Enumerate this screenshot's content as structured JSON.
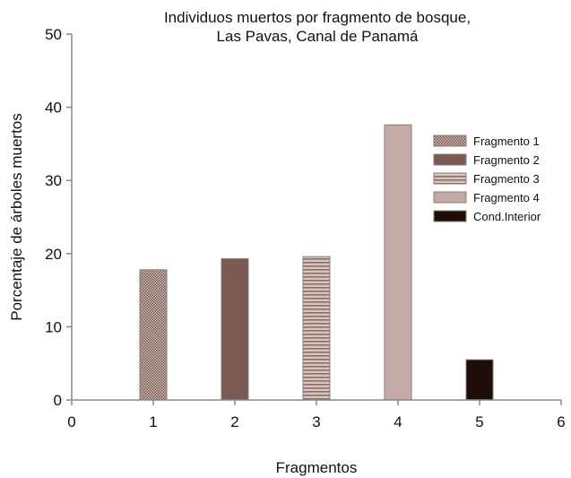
{
  "chart_data": {
    "type": "bar",
    "title_lines": [
      "Individuos muertos por fragmento de bosque,",
      "Las Pavas, Canal de Panamá"
    ],
    "xlabel": "Fragmentos",
    "ylabel": "Porcentaje de árboles muertos",
    "xlim": [
      0,
      6
    ],
    "ylim": [
      0,
      50
    ],
    "xticks": [
      "0",
      "1",
      "2",
      "3",
      "4",
      "5",
      "6"
    ],
    "yticks": [
      "0",
      "10",
      "20",
      "30",
      "40",
      "50"
    ],
    "grid": false,
    "legend_position": "right",
    "series": [
      {
        "name": "Fragmento 1",
        "x": 1,
        "value": 17.8,
        "color": "#a89088",
        "pattern": "dots"
      },
      {
        "name": "Fragmento 2",
        "x": 2,
        "value": 19.3,
        "color": "#7a5a52",
        "pattern": "solid"
      },
      {
        "name": "Fragmento 3",
        "x": 3,
        "value": 19.6,
        "color": "#a8908a",
        "pattern": "hlines"
      },
      {
        "name": "Fragmento 4",
        "x": 4,
        "value": 37.6,
        "color": "#c4aaa6",
        "pattern": "solid"
      },
      {
        "name": "Cond.Interior",
        "x": 5,
        "value": 5.5,
        "color": "#1e0c08",
        "pattern": "solid"
      }
    ]
  }
}
